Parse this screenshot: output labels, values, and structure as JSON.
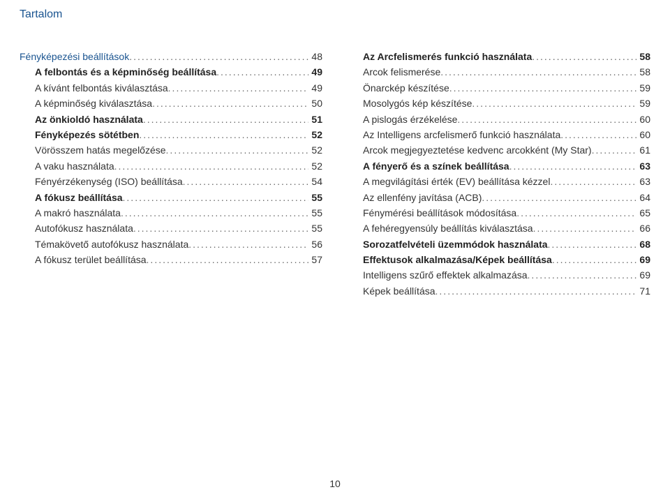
{
  "header": "Tartalom",
  "pageNumber": "10",
  "columns": {
    "left": [
      {
        "label": "Fényképezési beállítások",
        "page": "48",
        "section": true,
        "indent": false
      },
      {
        "label": "A felbontás és a képminőség beállítása",
        "page": "49",
        "bold": true,
        "indent": true
      },
      {
        "label": "A kívánt felbontás kiválasztása",
        "page": "49",
        "indent": true
      },
      {
        "label": "A képminőség kiválasztása",
        "page": "50",
        "indent": true
      },
      {
        "label": "Az önkioldó használata",
        "page": "51",
        "bold": true,
        "indent": true
      },
      {
        "label": "Fényképezés sötétben",
        "page": "52",
        "bold": true,
        "indent": true
      },
      {
        "label": "Vörösszem hatás megelőzése",
        "page": "52",
        "indent": true
      },
      {
        "label": "A vaku használata",
        "page": "52",
        "indent": true
      },
      {
        "label": "Fényérzékenység (ISO) beállítása",
        "page": "54",
        "indent": true
      },
      {
        "label": "A fókusz beállítása",
        "page": "55",
        "bold": true,
        "indent": true
      },
      {
        "label": "A makró használata",
        "page": "55",
        "indent": true
      },
      {
        "label": "Autofókusz használata",
        "page": "55",
        "indent": true
      },
      {
        "label": "Témakövető autofókusz használata",
        "page": "56",
        "indent": true
      },
      {
        "label": "A fókusz terület beállítása",
        "page": "57",
        "indent": true
      }
    ],
    "right": [
      {
        "label": "Az Arcfelismerés funkció használata",
        "page": "58",
        "bold": true,
        "indent": true
      },
      {
        "label": "Arcok felismerése",
        "page": "58",
        "indent": true
      },
      {
        "label": "Önarckép készítése",
        "page": "59",
        "indent": true
      },
      {
        "label": "Mosolygós kép készítése",
        "page": "59",
        "indent": true
      },
      {
        "label": "A pislogás érzékelése",
        "page": "60",
        "indent": true
      },
      {
        "label": "Az Intelligens arcfelismerő funkció használata",
        "page": "60",
        "indent": true
      },
      {
        "label": "Arcok megjegyeztetése kedvenc arcokként (My Star)",
        "page": "61",
        "indent": true
      },
      {
        "label": "A fényerő és a színek beállítása",
        "page": "63",
        "bold": true,
        "indent": true
      },
      {
        "label": "A megvilágítási érték (EV) beállítása kézzel",
        "page": "63",
        "indent": true
      },
      {
        "label": "Az ellenfény javítása (ACB)",
        "page": "64",
        "indent": true
      },
      {
        "label": "Fénymérési beállítások módosítása",
        "page": "65",
        "indent": true
      },
      {
        "label": "A fehéregyensúly beállítás kiválasztása",
        "page": "66",
        "indent": true
      },
      {
        "label": "Sorozatfelvételi üzemmódok használata",
        "page": "68",
        "bold": true,
        "indent": true
      },
      {
        "label": "Effektusok alkalmazása/Képek beállítása",
        "page": "69",
        "bold": true,
        "indent": true
      },
      {
        "label": "Intelligens szűrő effektek alkalmazása",
        "page": "69",
        "indent": true
      },
      {
        "label": "Képek beállítása",
        "page": "71",
        "indent": true
      }
    ]
  }
}
